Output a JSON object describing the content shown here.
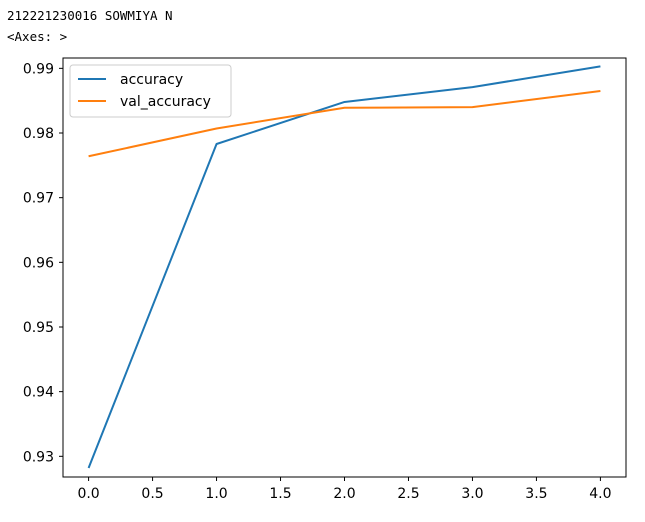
{
  "output": {
    "line1": "212221230016 SOWMIYA N",
    "line2": "<Axes: >"
  },
  "chart_data": {
    "type": "line",
    "x": [
      0,
      1,
      2,
      3,
      4
    ],
    "series": [
      {
        "name": "accuracy",
        "color": "#1f77b4",
        "values": [
          0.9282,
          0.9783,
          0.9848,
          0.9871,
          0.9903
        ]
      },
      {
        "name": "val_accuracy",
        "color": "#ff7f0e",
        "values": [
          0.9764,
          0.9807,
          0.9839,
          0.984,
          0.9865
        ]
      }
    ],
    "xlim": [
      -0.2,
      4.2
    ],
    "ylim": [
      0.9268,
      0.9916
    ],
    "xticks": [
      0.0,
      0.5,
      1.0,
      1.5,
      2.0,
      2.5,
      3.0,
      3.5,
      4.0
    ],
    "xtick_labels": [
      "0.0",
      "0.5",
      "1.0",
      "1.5",
      "2.0",
      "2.5",
      "3.0",
      "3.5",
      "4.0"
    ],
    "yticks": [
      0.93,
      0.94,
      0.95,
      0.96,
      0.97,
      0.98,
      0.99
    ],
    "ytick_labels": [
      "0.93",
      "0.94",
      "0.95",
      "0.96",
      "0.97",
      "0.98",
      "0.99"
    ],
    "title": "",
    "xlabel": "",
    "ylabel": "",
    "grid": false,
    "legend_position": "top-left"
  }
}
